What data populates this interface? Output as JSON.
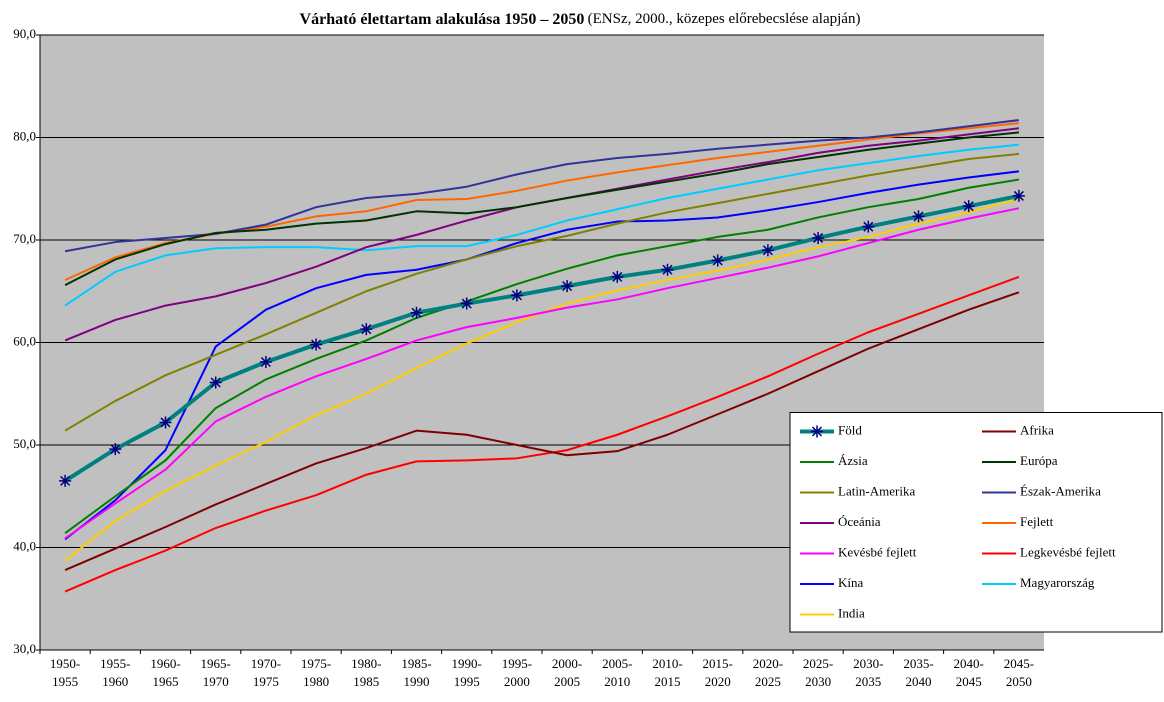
{
  "chart_data": {
    "type": "line",
    "title": "Várható élettartam alakulása 1950 – 2050",
    "subtitle": "(ENSz, 2000., közepes előrebecslése alapján)",
    "categories": [
      [
        "1950-",
        "1955"
      ],
      [
        "1955-",
        "1960"
      ],
      [
        "1960-",
        "1965"
      ],
      [
        "1965-",
        "1970"
      ],
      [
        "1970-",
        "1975"
      ],
      [
        "1975-",
        "1980"
      ],
      [
        "1980-",
        "1985"
      ],
      [
        "1985-",
        "1990"
      ],
      [
        "1990-",
        "1995"
      ],
      [
        "1995-",
        "2000"
      ],
      [
        "2000-",
        "2005"
      ],
      [
        "2005-",
        "2010"
      ],
      [
        "2010-",
        "2015"
      ],
      [
        "2015-",
        "2020"
      ],
      [
        "2020-",
        "2025"
      ],
      [
        "2025-",
        "2030"
      ],
      [
        "2030-",
        "2035"
      ],
      [
        "2035-",
        "2040"
      ],
      [
        "2040-",
        "2045"
      ],
      [
        "2045-",
        "2050"
      ]
    ],
    "ylim": [
      30,
      90
    ],
    "yticks": [
      {
        "value": 30,
        "label": "30,0"
      },
      {
        "value": 40,
        "label": "40,0"
      },
      {
        "value": 50,
        "label": "50,0"
      },
      {
        "value": 60,
        "label": "60,0"
      },
      {
        "value": 70,
        "label": "70,0"
      },
      {
        "value": 80,
        "label": "80,0"
      },
      {
        "value": 90,
        "label": "90,0"
      }
    ],
    "grid": true,
    "legend": "lower right",
    "series": [
      {
        "name": "Föld",
        "color": "#008080",
        "marker": "star",
        "marker_color": "#000080",
        "values": [
          46.5,
          49.6,
          52.2,
          56.1,
          58.1,
          59.8,
          61.3,
          62.9,
          63.8,
          64.6,
          65.5,
          66.4,
          67.1,
          68.0,
          69.0,
          70.2,
          71.3,
          72.3,
          73.3,
          74.3
        ]
      },
      {
        "name": "Afrika",
        "color": "#800000",
        "values": [
          37.8,
          39.9,
          42.0,
          44.2,
          46.2,
          48.2,
          49.7,
          51.4,
          51.0,
          50.0,
          49.0,
          49.4,
          51.0,
          53.0,
          55.0,
          57.2,
          59.4,
          61.3,
          63.2,
          64.9
        ]
      },
      {
        "name": "Ázsia",
        "color": "#008000",
        "values": [
          41.4,
          45.0,
          48.5,
          53.6,
          56.4,
          58.4,
          60.2,
          62.4,
          64.0,
          65.7,
          67.2,
          68.5,
          69.4,
          70.3,
          71.0,
          72.2,
          73.2,
          74.0,
          75.1,
          75.9
        ]
      },
      {
        "name": "Európa",
        "color": "#003300",
        "values": [
          65.6,
          68.1,
          69.6,
          70.7,
          71.0,
          71.6,
          71.9,
          72.8,
          72.6,
          73.2,
          74.1,
          74.9,
          75.7,
          76.5,
          77.4,
          78.1,
          78.8,
          79.4,
          80.0,
          80.5
        ]
      },
      {
        "name": "Latin-Amerika",
        "color": "#808000",
        "values": [
          51.4,
          54.3,
          56.8,
          58.8,
          60.8,
          62.9,
          65.0,
          66.7,
          68.1,
          69.4,
          70.4,
          71.6,
          72.7,
          73.6,
          74.5,
          75.4,
          76.3,
          77.1,
          77.9,
          78.4
        ]
      },
      {
        "name": "Észak-Amerika",
        "color": "#333399",
        "values": [
          68.9,
          69.8,
          70.2,
          70.6,
          71.5,
          73.2,
          74.1,
          74.5,
          75.2,
          76.4,
          77.4,
          78.0,
          78.4,
          78.9,
          79.3,
          79.7,
          80.0,
          80.5,
          81.1,
          81.7
        ]
      },
      {
        "name": "Óceánia",
        "color": "#800080",
        "values": [
          60.2,
          62.2,
          63.6,
          64.5,
          65.8,
          67.4,
          69.3,
          70.5,
          71.9,
          73.2,
          74.1,
          75.0,
          75.9,
          76.8,
          77.6,
          78.5,
          79.2,
          79.7,
          80.3,
          80.9
        ]
      },
      {
        "name": "Fejlett",
        "color": "#ff6600",
        "values": [
          66.1,
          68.3,
          69.7,
          70.6,
          71.3,
          72.3,
          72.8,
          73.9,
          74.0,
          74.8,
          75.8,
          76.6,
          77.3,
          78.0,
          78.6,
          79.2,
          79.8,
          80.4,
          80.9,
          81.4
        ]
      },
      {
        "name": "Kevésbé fejlett",
        "color": "#ff00ff",
        "values": [
          40.9,
          44.3,
          47.6,
          52.3,
          54.7,
          56.7,
          58.4,
          60.2,
          61.5,
          62.4,
          63.4,
          64.2,
          65.3,
          66.3,
          67.3,
          68.4,
          69.7,
          71.0,
          72.1,
          73.1
        ]
      },
      {
        "name": "Legkevésbé fejlett",
        "color": "#ff0000",
        "values": [
          35.7,
          37.8,
          39.7,
          41.9,
          43.6,
          45.1,
          47.1,
          48.4,
          48.5,
          48.7,
          49.5,
          51.0,
          52.8,
          54.7,
          56.7,
          58.9,
          61.0,
          62.8,
          64.6,
          66.4
        ]
      },
      {
        "name": "Kína",
        "color": "#0000ff",
        "values": [
          40.8,
          44.6,
          49.5,
          59.6,
          63.2,
          65.3,
          66.6,
          67.1,
          68.1,
          69.7,
          71.0,
          71.8,
          71.9,
          72.2,
          72.9,
          73.7,
          74.6,
          75.4,
          76.1,
          76.7
        ]
      },
      {
        "name": "Magyarország",
        "color": "#00ccff",
        "values": [
          63.6,
          66.9,
          68.5,
          69.2,
          69.3,
          69.3,
          69.0,
          69.4,
          69.4,
          70.5,
          71.9,
          73.0,
          74.1,
          75.0,
          75.9,
          76.8,
          77.5,
          78.2,
          78.8,
          79.3
        ]
      },
      {
        "name": "India",
        "color": "#ffcc00",
        "values": [
          38.7,
          42.6,
          45.5,
          48.0,
          50.3,
          52.9,
          55.0,
          57.5,
          59.9,
          62.0,
          63.8,
          65.1,
          66.1,
          67.0,
          68.1,
          69.3,
          70.3,
          71.6,
          72.7,
          74.0
        ]
      }
    ]
  }
}
